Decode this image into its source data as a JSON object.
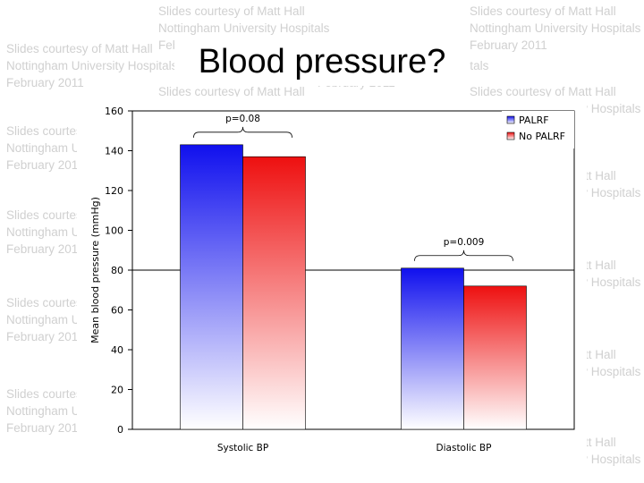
{
  "watermark": {
    "lines": [
      "Slides courtesy of Matt Hall",
      "Nottingham University Hospitals",
      "February 2011"
    ]
  },
  "colors": {
    "palrf": "#1010ee",
    "no_palrf": "#ee1010",
    "background": "#ffffff"
  },
  "chart_data": {
    "type": "bar",
    "title": "Blood pressure?",
    "categories": [
      "Systolic BP",
      "Diastolic BP"
    ],
    "series": [
      {
        "name": "PALRF",
        "values": [
          143,
          81
        ]
      },
      {
        "name": "No PALRF",
        "values": [
          137,
          72
        ]
      }
    ],
    "xlabel": "",
    "ylabel": "Mean blood pressure (mmHg)",
    "ylim": [
      0,
      160
    ],
    "yticks": [
      0,
      20,
      40,
      60,
      80,
      100,
      120,
      140,
      160
    ],
    "reference_line": 80,
    "legend_position": "top-right",
    "annotations": [
      {
        "category": "Systolic BP",
        "text": "p=0.08"
      },
      {
        "category": "Diastolic BP",
        "text": "p=0.009"
      }
    ]
  }
}
